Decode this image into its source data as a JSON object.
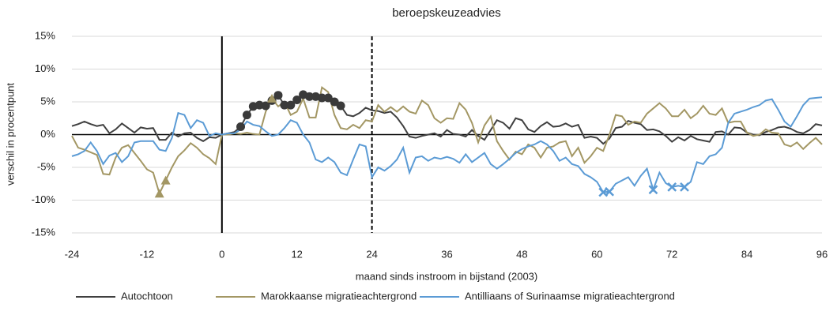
{
  "chart_data": {
    "type": "line",
    "title": "beroepskeuzeadvies",
    "x_label": "maand sinds instroom in bijstand (2003)",
    "y_label": "verschil in procentpunt",
    "x": [
      -24,
      -23,
      -22,
      -21,
      -20,
      -19,
      -18,
      -17,
      -16,
      -15,
      -14,
      -13,
      -12,
      -11,
      -10,
      -9,
      -8,
      -7,
      -6,
      -5,
      -4,
      -3,
      -2,
      -1,
      0,
      1,
      2,
      3,
      4,
      5,
      6,
      7,
      8,
      9,
      10,
      11,
      12,
      13,
      14,
      15,
      16,
      17,
      18,
      19,
      20,
      21,
      22,
      23,
      24,
      25,
      26,
      27,
      28,
      29,
      30,
      31,
      32,
      33,
      34,
      35,
      36,
      37,
      38,
      39,
      40,
      41,
      42,
      43,
      44,
      45,
      46,
      47,
      48,
      49,
      50,
      51,
      52,
      53,
      54,
      55,
      56,
      57,
      58,
      59,
      60,
      61,
      62,
      63,
      64,
      65,
      66,
      67,
      68,
      69,
      70,
      71,
      72,
      73,
      74,
      75,
      76,
      77,
      78,
      79,
      80,
      81,
      82,
      83,
      84,
      85,
      86,
      87,
      88,
      89,
      90,
      91,
      92,
      93,
      94,
      95,
      96
    ],
    "series": [
      {
        "name": "Autochtoon",
        "color": "#404040",
        "values": [
          1.3,
          1.6,
          2.0,
          1.6,
          1.3,
          1.5,
          0.2,
          0.8,
          1.7,
          1.0,
          0.3,
          1.1,
          0.9,
          1.0,
          -0.8,
          -0.8,
          0.3,
          -0.3,
          0.2,
          0.3,
          -0.5,
          -1.0,
          -0.4,
          -0.5,
          0.0,
          0.2,
          0.4,
          1.2,
          3.0,
          4.3,
          4.5,
          4.4,
          5.2,
          6.0,
          4.5,
          4.5,
          5.3,
          6.1,
          5.8,
          5.8,
          5.6,
          5.6,
          5.0,
          4.4,
          3.0,
          2.8,
          3.3,
          4.1,
          3.7,
          3.6,
          3.3,
          3.5,
          2.6,
          1.3,
          -0.3,
          -0.5,
          -0.2,
          0.0,
          0.2,
          -0.3,
          0.7,
          0.1,
          0.0,
          -0.3,
          0.7,
          -0.2,
          -0.8,
          0.7,
          2.2,
          1.8,
          0.9,
          2.5,
          2.2,
          0.8,
          0.4,
          1.3,
          1.9,
          1.2,
          1.3,
          1.7,
          1.2,
          1.5,
          -0.5,
          -0.3,
          -0.5,
          -1.4,
          -0.6,
          1.0,
          1.2,
          2.1,
          1.8,
          1.6,
          0.7,
          0.8,
          0.5,
          -0.2,
          -1.1,
          -0.4,
          -0.9,
          -0.2,
          -0.7,
          -0.9,
          -1.1,
          0.4,
          0.5,
          0.0,
          1.1,
          1.0,
          0.3,
          0.0,
          -0.1,
          0.4,
          0.7,
          1.1,
          1.2,
          0.9,
          0.4,
          0.2,
          0.7,
          1.6,
          1.4
        ],
        "markers": {
          "symbol": "circle",
          "x": [
            3,
            4,
            5,
            6,
            7,
            8,
            9,
            10,
            11,
            12,
            13,
            14,
            15,
            16,
            17,
            18,
            19
          ]
        }
      },
      {
        "name": "Marokkaanse migratieachtergrond",
        "color": "#a39764",
        "values": [
          -0.2,
          -2.0,
          -2.3,
          -2.7,
          -3.1,
          -6.0,
          -6.1,
          -3.5,
          -2.0,
          -1.6,
          -2.8,
          -4.0,
          -5.3,
          -5.8,
          -9.0,
          -7.0,
          -5.0,
          -3.3,
          -2.4,
          -1.3,
          -2.0,
          -3.0,
          -3.6,
          -4.5,
          0.0,
          0.0,
          0.2,
          0.1,
          0.3,
          0.1,
          0.0,
          3.5,
          5.5,
          4.3,
          5.0,
          3.0,
          3.5,
          5.5,
          2.6,
          2.6,
          7.2,
          6.5,
          3.0,
          1.0,
          0.8,
          1.5,
          1.0,
          2.2,
          2.0,
          4.5,
          3.5,
          4.2,
          3.5,
          4.3,
          3.5,
          3.2,
          5.2,
          4.5,
          2.5,
          1.8,
          2.5,
          2.4,
          4.8,
          3.8,
          1.8,
          -1.2,
          1.4,
          2.8,
          -1.0,
          -2.5,
          -3.8,
          -2.6,
          -3.0,
          -1.5,
          -2.0,
          -3.5,
          -2.0,
          -1.8,
          -1.2,
          -1.0,
          -3.3,
          -2.0,
          -4.3,
          -3.3,
          -2.0,
          -2.5,
          0.0,
          3.0,
          2.8,
          1.5,
          2.0,
          1.8,
          3.2,
          4.0,
          4.8,
          4.0,
          2.8,
          2.8,
          3.8,
          2.5,
          3.2,
          4.4,
          3.2,
          3.0,
          4.0,
          1.8,
          2.0,
          2.0,
          0.3,
          -0.2,
          0.0,
          0.8,
          0.3,
          0.2,
          -1.5,
          -1.8,
          -1.2,
          -2.2,
          -1.3,
          -0.5,
          -1.5
        ],
        "markers": {
          "symbol": "triangle",
          "x": [
            -10,
            -9,
            8
          ]
        }
      },
      {
        "name": "Antilliaans of Surinaamse migratieachtergrond",
        "color": "#5b9bd5",
        "values": [
          -3.3,
          -3.0,
          -2.5,
          -1.2,
          -2.5,
          -4.5,
          -3.2,
          -2.8,
          -4.2,
          -3.3,
          -1.2,
          -1.0,
          -1.0,
          -1.0,
          -2.3,
          -2.5,
          -0.5,
          3.3,
          3.0,
          1.0,
          2.2,
          1.8,
          -0.2,
          0.2,
          0.0,
          0.2,
          0.2,
          0.8,
          2.0,
          1.5,
          1.3,
          0.5,
          -0.2,
          0.0,
          1.0,
          2.2,
          1.8,
          0.0,
          -1.2,
          -3.8,
          -4.2,
          -3.5,
          -4.2,
          -5.8,
          -6.2,
          -3.8,
          -1.5,
          -1.8,
          -6.5,
          -5.0,
          -5.5,
          -4.8,
          -3.8,
          -2.0,
          -5.8,
          -3.5,
          -3.3,
          -4.0,
          -3.5,
          -3.7,
          -3.4,
          -3.7,
          -4.3,
          -3.0,
          -4.2,
          -3.5,
          -2.8,
          -4.5,
          -5.2,
          -4.5,
          -3.7,
          -2.8,
          -2.2,
          -1.8,
          -1.5,
          -1.0,
          -1.5,
          -2.5,
          -4.0,
          -3.5,
          -4.5,
          -4.8,
          -6.0,
          -6.5,
          -7.2,
          -8.8,
          -8.7,
          -7.5,
          -7.0,
          -6.5,
          -7.8,
          -6.3,
          -5.2,
          -8.4,
          -5.8,
          -7.4,
          -8.0,
          -7.8,
          -8.0,
          -7.2,
          -4.2,
          -4.5,
          -3.3,
          -3.0,
          -2.0,
          1.8,
          3.2,
          3.5,
          3.8,
          4.2,
          4.5,
          5.2,
          5.4,
          3.8,
          2.0,
          1.2,
          2.8,
          4.5,
          5.5,
          5.6,
          5.7
        ],
        "markers": {
          "symbol": "cross",
          "x": [
            61,
            62,
            69,
            72,
            74
          ]
        }
      }
    ],
    "xlim": [
      -24,
      96
    ],
    "xticks": [
      -24,
      -12,
      0,
      12,
      24,
      36,
      48,
      60,
      72,
      84,
      96
    ],
    "ylim": [
      -15,
      15
    ],
    "yticks": [
      {
        "value": -15,
        "label": "-15%"
      },
      {
        "value": -10,
        "label": "-10%"
      },
      {
        "value": -5,
        "label": "-5%"
      },
      {
        "value": 0,
        "label": "0%"
      },
      {
        "value": 5,
        "label": "5%"
      },
      {
        "value": 10,
        "label": "10%"
      },
      {
        "value": 15,
        "label": "15%"
      }
    ],
    "vlines": [
      {
        "x": 0,
        "style": "solid"
      },
      {
        "x": 24,
        "style": "dashed"
      }
    ],
    "grid": true,
    "legend": "bottom"
  }
}
